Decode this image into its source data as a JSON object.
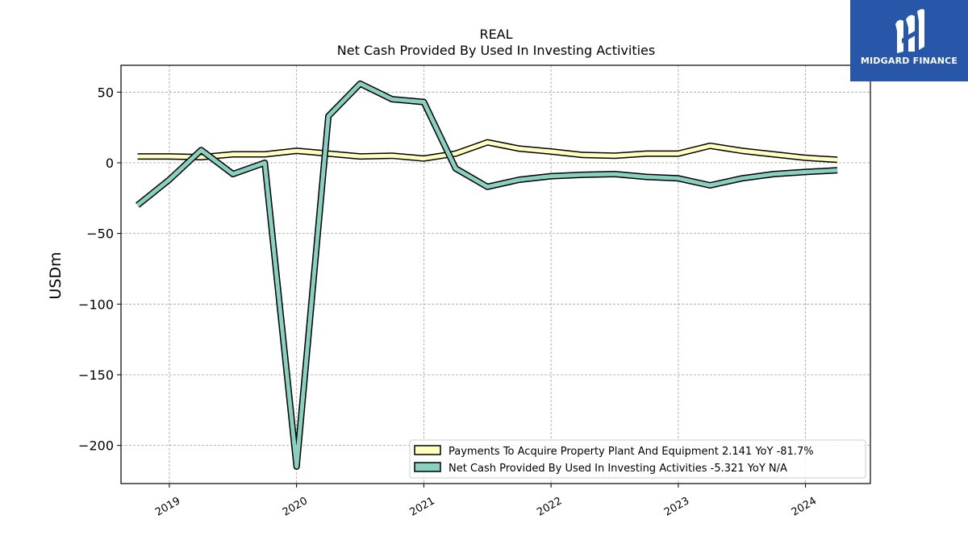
{
  "logo": {
    "text": "MIDGARD FINANCE",
    "icon": "midgard-m-logo-icon",
    "background": "#2856a8"
  },
  "chart_data": {
    "type": "line",
    "title": "REAL",
    "subtitle": "Net Cash Provided By Used In Investing Activities",
    "ylabel": "USDm",
    "xlabel": "",
    "xlim": [
      2018.62,
      2024.51
    ],
    "ylim": [
      -227,
      69
    ],
    "yticks": [
      50,
      0,
      -50,
      -100,
      -150,
      -200
    ],
    "ytick_labels": [
      "50",
      "0",
      "−50",
      "−100",
      "−150",
      "−200"
    ],
    "xticks": [
      2019,
      2020,
      2021,
      2022,
      2023,
      2024
    ],
    "xtick_labels": [
      "2019",
      "2020",
      "2021",
      "2022",
      "2023",
      "2024"
    ],
    "grid": true,
    "legend_position": "bottom-right",
    "x": [
      2018.75,
      2019.0,
      2019.25,
      2019.5,
      2019.75,
      2020.0,
      2020.25,
      2020.5,
      2020.75,
      2021.0,
      2021.25,
      2021.5,
      2021.75,
      2022.0,
      2022.25,
      2022.5,
      2022.75,
      2023.0,
      2023.25,
      2023.5,
      2023.75,
      2024.0,
      2024.25
    ],
    "series": [
      {
        "name": "Payments To Acquire Property Plant And Equipment",
        "legend_label": "Payments To Acquire Property Plant And Equipment  2.141 YoY -81.7%",
        "color": "#ffffc0",
        "values": [
          4.5,
          4.5,
          4.0,
          6.0,
          6.0,
          8.5,
          6.5,
          4.5,
          5.0,
          3.0,
          6.5,
          14.5,
          10.0,
          8.0,
          5.5,
          5.0,
          6.5,
          6.5,
          12.0,
          8.5,
          6.0,
          3.5,
          2.1
        ]
      },
      {
        "name": "Net Cash Provided By Used In Investing Activities",
        "legend_label": "Net Cash Provided By Used In Investing Activities  -5.321 YoY N/A",
        "color": "#88d0c0",
        "values": [
          -30,
          -12,
          9,
          -8,
          0,
          -215,
          33,
          56,
          45,
          43,
          -4,
          -17,
          -12,
          -9.5,
          -8.5,
          -8,
          -10,
          -11,
          -16,
          -11,
          -8,
          -6.5,
          -5.3
        ]
      }
    ]
  }
}
